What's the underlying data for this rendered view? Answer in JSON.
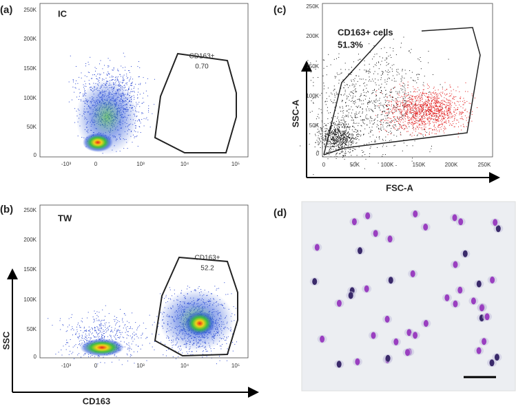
{
  "panels": [
    {
      "label": "(a)",
      "sample": "IC",
      "gate_name": "CD163+",
      "gate_value": "0.70",
      "yticks": [
        "250K",
        "200K",
        "150K",
        "100K",
        "50K",
        "0"
      ],
      "xticks": [
        "-10³",
        "0",
        "10³",
        "10⁴",
        "10⁵"
      ]
    },
    {
      "label": "(b)",
      "sample": "TW",
      "gate_name": "CD163+",
      "gate_value": "52.2",
      "yticks": [
        "250K",
        "200K",
        "150K",
        "100K",
        "50K",
        "0"
      ],
      "xticks": [
        "-10³",
        "0",
        "10³",
        "10⁴",
        "10⁵"
      ],
      "y_title": "SSC",
      "x_title": "CD163"
    },
    {
      "label": "(c)",
      "gate_name": "CD163+ cells",
      "gate_value": "51.3%",
      "yticks": [
        "250K",
        "200K",
        "150K",
        "100K",
        "50K",
        "0"
      ],
      "xticks": [
        "0",
        "50K",
        "100K",
        "150K",
        "200K",
        "250K"
      ],
      "y_title": "SSC-A",
      "x_title": "FSC-A"
    },
    {
      "label": "(d)"
    }
  ]
}
